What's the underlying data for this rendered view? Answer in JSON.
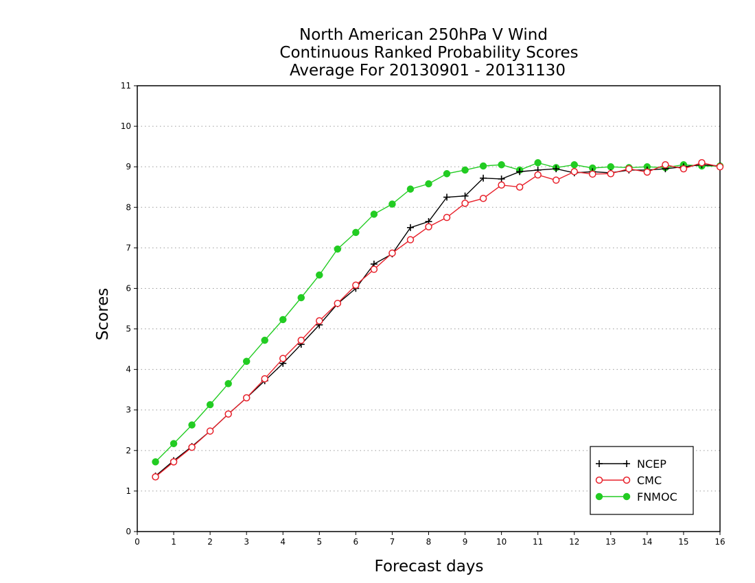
{
  "chart_data": {
    "type": "line",
    "title": [
      "North American 250hPa V Wind",
      "Continuous Ranked Probability Scores",
      "Average For 20130901 - 20131130"
    ],
    "xlabel": "Forecast days",
    "ylabel": "Scores",
    "xlim": [
      0,
      16
    ],
    "ylim": [
      0,
      11
    ],
    "x_ticks": [
      "0",
      "1",
      "2",
      "3",
      "4",
      "5",
      "6",
      "7",
      "8",
      "9",
      "10",
      "11",
      "12",
      "13",
      "14",
      "15",
      "16"
    ],
    "y_ticks": [
      "0",
      "1",
      "2",
      "3",
      "4",
      "5",
      "6",
      "7",
      "8",
      "9",
      "10",
      "11"
    ],
    "grid": "horizontal dotted",
    "legend_position": "bottom-right",
    "x": [
      0.5,
      1,
      1.5,
      2,
      2.5,
      3,
      3.5,
      4,
      4.5,
      5,
      5.5,
      6,
      6.5,
      7,
      7.5,
      8,
      8.5,
      9,
      9.5,
      10,
      10.5,
      11,
      11.5,
      12,
      12.5,
      13,
      13.5,
      14,
      14.5,
      15,
      15.5,
      16
    ],
    "series": [
      {
        "name": "NCEP",
        "color": "#000000",
        "marker": "plus",
        "values": [
          1.37,
          1.75,
          2.1,
          2.48,
          2.9,
          3.3,
          3.72,
          4.15,
          4.62,
          5.1,
          5.62,
          6.0,
          6.6,
          6.85,
          7.5,
          7.65,
          8.25,
          8.28,
          8.72,
          8.7,
          8.88,
          8.92,
          8.95,
          8.85,
          8.88,
          8.85,
          8.92,
          8.92,
          8.95,
          9.0,
          9.05,
          9.02
        ]
      },
      {
        "name": "CMC",
        "color": "#e8202a",
        "marker": "open-circle",
        "values": [
          1.35,
          1.72,
          2.08,
          2.48,
          2.9,
          3.3,
          3.77,
          4.27,
          4.72,
          5.2,
          5.63,
          6.08,
          6.47,
          6.87,
          7.2,
          7.52,
          7.75,
          8.1,
          8.22,
          8.55,
          8.5,
          8.8,
          8.67,
          8.88,
          8.82,
          8.83,
          8.95,
          8.87,
          9.05,
          8.95,
          9.1,
          9.0
        ]
      },
      {
        "name": "FNMOC",
        "color": "#22cc22",
        "marker": "filled-circle",
        "values": [
          1.72,
          2.17,
          2.63,
          3.13,
          3.65,
          4.2,
          4.72,
          5.23,
          5.77,
          6.33,
          6.97,
          7.38,
          7.83,
          8.08,
          8.45,
          8.58,
          8.83,
          8.92,
          9.02,
          9.05,
          8.92,
          9.1,
          8.98,
          9.05,
          8.97,
          9.0,
          8.98,
          9.0,
          8.98,
          9.05,
          9.02,
          9.02
        ]
      }
    ]
  }
}
